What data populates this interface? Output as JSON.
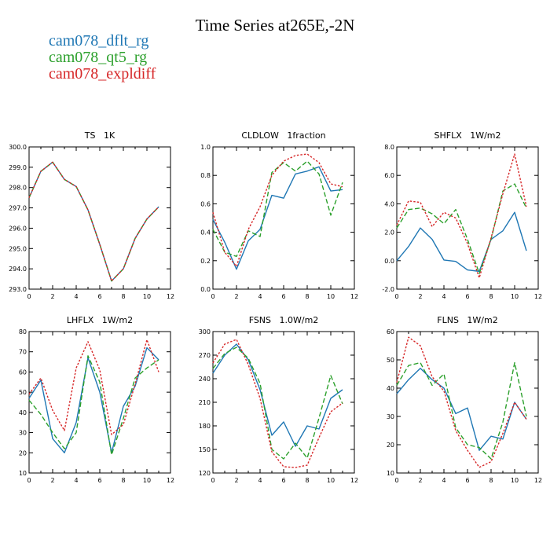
{
  "title": "Time Series at265E,-2N",
  "legend": [
    {
      "label": "cam078_dflt_rg",
      "color": "#1f77b4"
    },
    {
      "label": "cam078_qt5_rg",
      "color": "#2ca02c"
    },
    {
      "label": "cam078_expldiff",
      "color": "#d62728"
    }
  ],
  "chart_data": [
    {
      "type": "line",
      "title": "TS   1K",
      "x": [
        0,
        1,
        2,
        3,
        4,
        5,
        6,
        7,
        8,
        9,
        10,
        11
      ],
      "xlim": [
        0,
        12
      ],
      "xticks": [
        "0",
        "2",
        "4",
        "6",
        "8",
        "10",
        "12"
      ],
      "ylim": [
        293.0,
        300.0
      ],
      "yticks": [
        "293.0",
        "294.0",
        "295.0",
        "296.0",
        "297.0",
        "298.0",
        "299.0",
        "300.0"
      ],
      "series": [
        {
          "values": [
            297.5,
            298.8,
            299.25,
            298.4,
            298.05,
            296.9,
            295.2,
            293.4,
            294.0,
            295.5,
            296.45,
            297.05
          ],
          "color": "#1f77b4",
          "dash": "solid"
        },
        {
          "values": [
            297.5,
            298.8,
            299.25,
            298.4,
            298.05,
            296.9,
            295.2,
            293.4,
            294.0,
            295.5,
            296.45,
            297.05
          ],
          "color": "#2ca02c",
          "dash": "dashed"
        },
        {
          "values": [
            297.5,
            298.8,
            299.25,
            298.4,
            298.05,
            296.9,
            295.2,
            293.4,
            294.0,
            295.5,
            296.45,
            297.05
          ],
          "color": "#d62728",
          "dash": "dotted"
        }
      ]
    },
    {
      "type": "line",
      "title": "CLDLOW   1fraction",
      "x": [
        0,
        1,
        2,
        3,
        4,
        5,
        6,
        7,
        8,
        9,
        10,
        11
      ],
      "xlim": [
        0,
        12
      ],
      "xticks": [
        "0",
        "2",
        "4",
        "6",
        "8",
        "10",
        "12"
      ],
      "ylim": [
        0.0,
        1.0
      ],
      "yticks": [
        "0.0",
        "0.2",
        "0.4",
        "0.6",
        "0.8",
        "1.0"
      ],
      "series": [
        {
          "values": [
            0.49,
            0.33,
            0.14,
            0.34,
            0.42,
            0.66,
            0.64,
            0.81,
            0.83,
            0.86,
            0.69,
            0.7
          ],
          "color": "#1f77b4",
          "dash": "solid"
        },
        {
          "values": [
            0.42,
            0.26,
            0.23,
            0.41,
            0.37,
            0.82,
            0.89,
            0.83,
            0.9,
            0.81,
            0.52,
            0.75
          ],
          "color": "#2ca02c",
          "dash": "dashed"
        },
        {
          "values": [
            0.54,
            0.26,
            0.16,
            0.42,
            0.58,
            0.8,
            0.9,
            0.94,
            0.95,
            0.89,
            0.74,
            0.72
          ],
          "color": "#d62728",
          "dash": "dotted"
        }
      ]
    },
    {
      "type": "line",
      "title": "SHFLX   1W/m2",
      "x": [
        0,
        1,
        2,
        3,
        4,
        5,
        6,
        7,
        8,
        9,
        10,
        11
      ],
      "xlim": [
        0,
        12
      ],
      "xticks": [
        "0",
        "2",
        "4",
        "6",
        "8",
        "10",
        "12"
      ],
      "ylim": [
        -2.0,
        8.0
      ],
      "yticks": [
        "-2.0",
        "0.0",
        "2.0",
        "4.0",
        "6.0",
        "8.0"
      ],
      "series": [
        {
          "values": [
            0.0,
            1.0,
            2.3,
            1.5,
            0.05,
            -0.05,
            -0.65,
            -0.75,
            1.5,
            2.1,
            3.4,
            0.7
          ],
          "color": "#1f77b4",
          "dash": "solid"
        },
        {
          "values": [
            2.3,
            3.6,
            3.7,
            3.3,
            2.6,
            3.6,
            1.5,
            -0.9,
            1.5,
            4.9,
            5.4,
            3.7
          ],
          "color": "#2ca02c",
          "dash": "dashed"
        },
        {
          "values": [
            2.5,
            4.2,
            4.1,
            2.4,
            3.4,
            3.0,
            1.2,
            -1.2,
            1.6,
            4.7,
            7.5,
            3.8
          ],
          "color": "#d62728",
          "dash": "dotted"
        }
      ]
    },
    {
      "type": "line",
      "title": "LHFLX   1W/m2",
      "x": [
        0,
        1,
        2,
        3,
        4,
        5,
        6,
        7,
        8,
        9,
        10,
        11
      ],
      "xlim": [
        0,
        12
      ],
      "xticks": [
        "0",
        "2",
        "4",
        "6",
        "8",
        "10",
        "12"
      ],
      "ylim": [
        10,
        80
      ],
      "yticks": [
        "10",
        "20",
        "30",
        "40",
        "50",
        "60",
        "70",
        "80"
      ],
      "series": [
        {
          "values": [
            47,
            56,
            27,
            20,
            35,
            67,
            50,
            20,
            43,
            53,
            72,
            66
          ],
          "color": "#1f77b4",
          "dash": "solid"
        },
        {
          "values": [
            46,
            39,
            30,
            22,
            30,
            68,
            55,
            19,
            37,
            57,
            62,
            66
          ],
          "color": "#2ca02c",
          "dash": "dashed"
        },
        {
          "values": [
            49,
            57,
            41,
            31,
            62,
            75,
            61,
            29,
            34,
            54,
            76,
            60
          ],
          "color": "#d62728",
          "dash": "dotted"
        }
      ]
    },
    {
      "type": "line",
      "title": "FSNS   1.0W/m2",
      "x": [
        0,
        1,
        2,
        3,
        4,
        5,
        6,
        7,
        8,
        9,
        10,
        11
      ],
      "xlim": [
        0,
        12
      ],
      "xticks": [
        "0",
        "2",
        "4",
        "6",
        "8",
        "10",
        "12"
      ],
      "ylim": [
        120,
        300
      ],
      "yticks": [
        "120",
        "150",
        "180",
        "210",
        "240",
        "270",
        "300"
      ],
      "series": [
        {
          "values": [
            247,
            270,
            284,
            264,
            226,
            168,
            185,
            154,
            180,
            176,
            215,
            226
          ],
          "color": "#1f77b4",
          "dash": "solid"
        },
        {
          "values": [
            253,
            272,
            280,
            266,
            234,
            150,
            138,
            158,
            139,
            190,
            244,
            208
          ],
          "color": "#2ca02c",
          "dash": "dashed"
        },
        {
          "values": [
            260,
            284,
            290,
            258,
            215,
            147,
            128,
            127,
            130,
            165,
            198,
            209
          ],
          "color": "#d62728",
          "dash": "dotted"
        }
      ]
    },
    {
      "type": "line",
      "title": "FLNS   1W/m2",
      "x": [
        0,
        1,
        2,
        3,
        4,
        5,
        6,
        7,
        8,
        9,
        10,
        11
      ],
      "xlim": [
        0,
        12
      ],
      "xticks": [
        "0",
        "2",
        "4",
        "6",
        "8",
        "10",
        "12"
      ],
      "ylim": [
        10,
        60
      ],
      "yticks": [
        "10",
        "20",
        "30",
        "40",
        "50",
        "60"
      ],
      "series": [
        {
          "values": [
            38,
            43,
            47,
            43,
            40,
            31,
            33,
            18,
            23,
            22,
            35,
            29
          ],
          "color": "#1f77b4",
          "dash": "solid"
        },
        {
          "values": [
            41,
            48,
            49,
            41,
            45,
            26,
            20,
            19,
            15,
            28,
            49,
            30
          ],
          "color": "#2ca02c",
          "dash": "dashed"
        },
        {
          "values": [
            42,
            58,
            55,
            44,
            39,
            25,
            18,
            12,
            14,
            24,
            35,
            29
          ],
          "color": "#d62728",
          "dash": "dotted"
        }
      ]
    }
  ]
}
